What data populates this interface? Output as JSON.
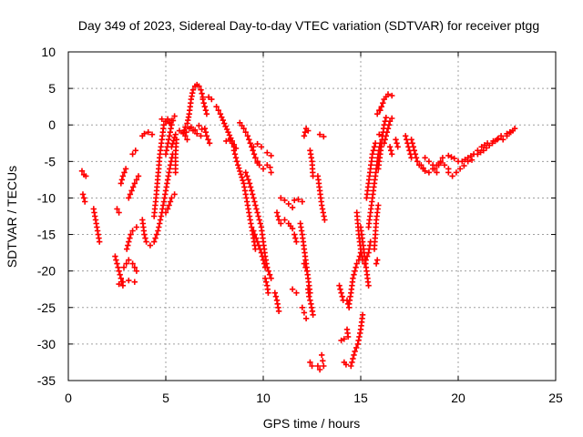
{
  "chart_data": {
    "type": "scatter",
    "title": "Day 349 of 2023, Sidereal Day-to-day VTEC variation (SDTVAR) for receiver ptgg",
    "xlabel": "GPS time / hours",
    "ylabel": "SDTVAR / TECUs",
    "xlim": [
      0,
      25
    ],
    "ylim": [
      -35,
      10
    ],
    "xticks": [
      "0",
      "5",
      "10",
      "15",
      "20",
      "25"
    ],
    "yticks": [
      "-35",
      "-30",
      "-25",
      "-20",
      "-15",
      "-10",
      "-5",
      "0",
      "5",
      "10"
    ],
    "grid": true,
    "marker": "plus",
    "color": "#ff0000",
    "tracks": [
      [
        [
          0.7,
          -6.3
        ],
        [
          0.8,
          -6.8
        ],
        [
          0.9,
          -7.0
        ]
      ],
      [
        [
          0.75,
          -9.5
        ],
        [
          0.85,
          -10.5
        ]
      ],
      [
        [
          1.3,
          -11.5
        ],
        [
          1.4,
          -13
        ],
        [
          1.5,
          -14.5
        ],
        [
          1.6,
          -16
        ]
      ],
      [
        [
          2.5,
          -11.5
        ],
        [
          2.6,
          -12
        ]
      ],
      [
        [
          2.4,
          -18
        ],
        [
          2.5,
          -19
        ],
        [
          2.6,
          -20
        ],
        [
          2.7,
          -21
        ],
        [
          2.8,
          -22
        ]
      ],
      [
        [
          2.6,
          -21.8
        ],
        [
          2.8,
          -21.5
        ],
        [
          3.1,
          -21.3
        ],
        [
          3.4,
          -21.5
        ]
      ],
      [
        [
          2.7,
          -8
        ],
        [
          2.8,
          -7
        ],
        [
          2.95,
          -6
        ]
      ],
      [
        [
          2.85,
          -19.5
        ],
        [
          3.1,
          -18.5
        ],
        [
          3.3,
          -19
        ],
        [
          3.5,
          -20
        ]
      ],
      [
        [
          3.0,
          -17
        ],
        [
          3.1,
          -16
        ],
        [
          3.2,
          -15
        ],
        [
          3.3,
          -14.5
        ],
        [
          3.5,
          -14
        ]
      ],
      [
        [
          3.1,
          -10
        ],
        [
          3.25,
          -9
        ],
        [
          3.4,
          -8
        ],
        [
          3.6,
          -7
        ]
      ],
      [
        [
          3.3,
          -4
        ],
        [
          3.45,
          -3.5
        ]
      ],
      [
        [
          3.8,
          -13
        ],
        [
          3.9,
          -15
        ],
        [
          4.0,
          -16
        ],
        [
          4.2,
          -16.5
        ],
        [
          4.4,
          -16
        ],
        [
          4.6,
          -14.5
        ],
        [
          4.8,
          -12
        ],
        [
          5.0,
          -9
        ],
        [
          5.2,
          -6
        ],
        [
          5.35,
          -4
        ]
      ],
      [
        [
          3.8,
          -1.5
        ],
        [
          3.9,
          -1.2
        ],
        [
          4.1,
          -1.0
        ],
        [
          4.3,
          -1.3
        ]
      ],
      [
        [
          4.4,
          -12.5
        ],
        [
          4.5,
          -10
        ],
        [
          4.6,
          -7
        ],
        [
          4.7,
          -4
        ],
        [
          4.8,
          -2
        ],
        [
          4.9,
          0
        ],
        [
          5.0,
          0.5
        ],
        [
          5.1,
          0.8
        ],
        [
          5.2,
          0.3
        ]
      ],
      [
        [
          4.8,
          0.8
        ],
        [
          5.0,
          0.5
        ],
        [
          5.2,
          0.2
        ],
        [
          5.3,
          0.6
        ]
      ],
      [
        [
          5.0,
          -12
        ],
        [
          5.1,
          -11.5
        ],
        [
          5.3,
          -10
        ],
        [
          5.45,
          -9.5
        ]
      ],
      [
        [
          5.0,
          -4
        ],
        [
          5.15,
          -2
        ],
        [
          5.3,
          0
        ],
        [
          5.45,
          1.2
        ]
      ],
      [
        [
          5.3,
          -3
        ],
        [
          5.5,
          -1.3
        ],
        [
          5.7,
          -0.8
        ],
        [
          5.9,
          -1.0
        ],
        [
          6.1,
          -2.0
        ]
      ],
      [
        [
          5.5,
          -6.5
        ],
        [
          5.5,
          -4
        ],
        [
          5.55,
          -2
        ]
      ],
      [
        [
          5.9,
          -1.2
        ],
        [
          6.0,
          -0.3
        ],
        [
          6.1,
          0.2
        ],
        [
          6.2,
          1.5
        ],
        [
          6.3,
          3.5
        ],
        [
          6.4,
          4.8
        ],
        [
          6.5,
          5.3
        ],
        [
          6.6,
          5.5
        ],
        [
          6.7,
          5.3
        ],
        [
          6.8,
          4.8
        ],
        [
          6.9,
          3.8
        ]
      ],
      [
        [
          6.05,
          -1.0
        ],
        [
          6.2,
          -0.5
        ],
        [
          6.4,
          -0.8
        ],
        [
          6.6,
          -1.2
        ],
        [
          6.8,
          -1.5
        ]
      ],
      [
        [
          6.3,
          -0.3
        ],
        [
          6.5,
          -0.7
        ],
        [
          6.7,
          -0.1
        ],
        [
          6.85,
          -0.6
        ]
      ],
      [
        [
          6.9,
          3.5
        ],
        [
          7.0,
          2.5
        ],
        [
          7.1,
          1.5
        ]
      ],
      [
        [
          7.0,
          -0.5
        ],
        [
          7.1,
          -1.5
        ],
        [
          7.25,
          -2.5
        ]
      ],
      [
        [
          7.2,
          3.8
        ],
        [
          7.35,
          3.5
        ]
      ],
      [
        [
          7.6,
          2.5
        ],
        [
          7.8,
          1.5
        ],
        [
          8.0,
          0.2
        ],
        [
          8.2,
          -1.0
        ],
        [
          8.4,
          -2.2
        ],
        [
          8.6,
          -3.2
        ]
      ],
      [
        [
          8.1,
          -2.2
        ],
        [
          8.3,
          -2.0
        ],
        [
          8.5,
          -3.0
        ]
      ],
      [
        [
          8.5,
          -3.5
        ],
        [
          8.7,
          -5.5
        ],
        [
          9.0,
          -8
        ],
        [
          9.2,
          -11
        ],
        [
          9.4,
          -14
        ],
        [
          9.6,
          -17
        ]
      ],
      [
        [
          8.8,
          0.3
        ],
        [
          9.0,
          -0.5
        ],
        [
          9.2,
          -1.5
        ],
        [
          9.4,
          -3
        ],
        [
          9.6,
          -4.5
        ],
        [
          9.8,
          -5.5
        ],
        [
          10.0,
          -6
        ],
        [
          10.2,
          -5.5
        ]
      ],
      [
        [
          9.1,
          -6.5
        ],
        [
          9.3,
          -8
        ],
        [
          9.5,
          -10
        ],
        [
          9.7,
          -12
        ],
        [
          9.9,
          -14
        ],
        [
          10.0,
          -16
        ],
        [
          10.1,
          -18
        ],
        [
          10.2,
          -19.5
        ],
        [
          10.4,
          -21
        ]
      ],
      [
        [
          9.5,
          -14.5
        ],
        [
          9.7,
          -16
        ],
        [
          9.9,
          -17.5
        ],
        [
          10.1,
          -19.5
        ]
      ],
      [
        [
          9.5,
          -3
        ],
        [
          9.7,
          -2.6
        ],
        [
          9.9,
          -3.0
        ]
      ],
      [
        [
          9.6,
          -4.5
        ],
        [
          9.7,
          -5.2
        ]
      ],
      [
        [
          10.1,
          -21
        ],
        [
          10.2,
          -22
        ],
        [
          10.25,
          -23
        ]
      ],
      [
        [
          10.6,
          -23
        ],
        [
          10.7,
          -24
        ],
        [
          10.8,
          -25.5
        ]
      ],
      [
        [
          10.2,
          -3.8
        ],
        [
          10.4,
          -4.2
        ]
      ],
      [
        [
          10.35,
          -5.8
        ],
        [
          10.4,
          -6.5
        ]
      ],
      [
        [
          10.7,
          -12
        ],
        [
          10.8,
          -13
        ],
        [
          10.9,
          -13.5
        ]
      ],
      [
        [
          10.9,
          -10
        ],
        [
          11.1,
          -10.3
        ],
        [
          11.3,
          -10.8
        ],
        [
          11.5,
          -11.3
        ]
      ],
      [
        [
          11.1,
          -13
        ],
        [
          11.3,
          -13.5
        ],
        [
          11.5,
          -14.2
        ],
        [
          11.6,
          -15
        ],
        [
          11.7,
          -16
        ]
      ],
      [
        [
          11.6,
          -10.3
        ],
        [
          11.8,
          -10.2
        ],
        [
          12.0,
          -10.5
        ]
      ],
      [
        [
          11.5,
          -22.5
        ],
        [
          11.7,
          -23
        ]
      ],
      [
        [
          11.9,
          -13.5
        ],
        [
          12.0,
          -15
        ],
        [
          12.1,
          -17
        ],
        [
          12.2,
          -19
        ],
        [
          12.3,
          -21
        ],
        [
          12.4,
          -23
        ]
      ],
      [
        [
          12.0,
          -25
        ],
        [
          12.1,
          -25.7
        ],
        [
          12.2,
          -26.5
        ]
      ],
      [
        [
          12.1,
          -1.5
        ],
        [
          12.2,
          -0.5
        ],
        [
          12.3,
          -0.8
        ]
      ],
      [
        [
          12.1,
          -19
        ],
        [
          12.25,
          -20
        ]
      ],
      [
        [
          12.3,
          -22.5
        ],
        [
          12.35,
          -23.5
        ],
        [
          12.45,
          -24.5
        ],
        [
          12.55,
          -26
        ]
      ],
      [
        [
          12.4,
          -32.5
        ],
        [
          12.5,
          -33
        ]
      ],
      [
        [
          12.4,
          -3.5
        ],
        [
          12.5,
          -5
        ],
        [
          12.55,
          -7
        ]
      ],
      [
        [
          12.8,
          -7
        ],
        [
          12.9,
          -9
        ],
        [
          13.0,
          -11
        ],
        [
          13.15,
          -13
        ]
      ],
      [
        [
          12.8,
          -33
        ],
        [
          12.9,
          -33.5
        ]
      ],
      [
        [
          12.9,
          -1.3
        ],
        [
          13.1,
          -1.6
        ]
      ],
      [
        [
          13.0,
          -31.5
        ],
        [
          13.05,
          -32.3
        ],
        [
          13.1,
          -33
        ]
      ],
      [
        [
          13.9,
          -22
        ],
        [
          14.0,
          -23
        ],
        [
          14.1,
          -24
        ]
      ],
      [
        [
          14.0,
          -29.5
        ],
        [
          14.15,
          -29.3
        ]
      ],
      [
        [
          14.15,
          -32.5
        ],
        [
          14.25,
          -32.8
        ]
      ],
      [
        [
          14.3,
          -28
        ],
        [
          14.35,
          -29
        ]
      ],
      [
        [
          14.4,
          -24.5
        ],
        [
          14.5,
          -23
        ],
        [
          14.6,
          -21
        ],
        [
          14.7,
          -20
        ],
        [
          14.8,
          -19
        ],
        [
          14.9,
          -18.5
        ],
        [
          15.0,
          -17.5
        ]
      ],
      [
        [
          14.3,
          -24
        ],
        [
          14.4,
          -25
        ]
      ],
      [
        [
          14.5,
          -33
        ],
        [
          14.6,
          -32
        ],
        [
          14.7,
          -31
        ],
        [
          14.85,
          -30
        ],
        [
          15.0,
          -28
        ],
        [
          15.1,
          -26
        ]
      ],
      [
        [
          14.8,
          -12
        ],
        [
          14.9,
          -15
        ],
        [
          15.0,
          -17
        ],
        [
          15.1,
          -18.5
        ]
      ],
      [
        [
          15.0,
          -14
        ],
        [
          15.1,
          -16
        ],
        [
          15.2,
          -18
        ],
        [
          15.3,
          -20
        ],
        [
          15.4,
          -22
        ]
      ],
      [
        [
          15.2,
          -19
        ],
        [
          15.4,
          -17.5
        ],
        [
          15.5,
          -16
        ]
      ],
      [
        [
          15.3,
          -10
        ],
        [
          15.4,
          -8
        ],
        [
          15.5,
          -6
        ],
        [
          15.6,
          -4
        ],
        [
          15.75,
          -2.5
        ]
      ],
      [
        [
          15.4,
          -14
        ],
        [
          15.5,
          -12
        ],
        [
          15.6,
          -10
        ],
        [
          15.7,
          -8
        ],
        [
          15.8,
          -6
        ],
        [
          15.9,
          -4
        ],
        [
          16.0,
          -2.5
        ]
      ],
      [
        [
          15.7,
          -17
        ],
        [
          15.75,
          -15
        ],
        [
          15.8,
          -13
        ],
        [
          15.9,
          -11
        ]
      ],
      [
        [
          15.8,
          -19
        ],
        [
          15.85,
          -18.5
        ]
      ],
      [
        [
          15.9,
          -6
        ],
        [
          16.0,
          -4
        ],
        [
          16.1,
          -2
        ],
        [
          16.2,
          0
        ],
        [
          16.3,
          1
        ]
      ],
      [
        [
          15.95,
          -1.3
        ],
        [
          16.1,
          -1.5
        ]
      ],
      [
        [
          16.2,
          -2.5
        ],
        [
          16.3,
          -1.5
        ],
        [
          16.4,
          -0.5
        ],
        [
          16.5,
          0.5
        ],
        [
          16.6,
          0.9
        ]
      ],
      [
        [
          16.0,
          2
        ],
        [
          16.2,
          3.5
        ],
        [
          16.4,
          4.2
        ],
        [
          16.6,
          4.0
        ]
      ],
      [
        [
          15.85,
          1.5
        ],
        [
          15.95,
          2.0
        ]
      ],
      [
        [
          16.5,
          -3
        ],
        [
          16.6,
          -4
        ]
      ],
      [
        [
          16.8,
          -2
        ],
        [
          16.9,
          -3
        ]
      ],
      [
        [
          17.3,
          -1.5
        ],
        [
          17.4,
          -2.5
        ],
        [
          17.5,
          -3.5
        ],
        [
          17.6,
          -4.5
        ]
      ],
      [
        [
          17.6,
          -2.0
        ],
        [
          17.7,
          -3.0
        ],
        [
          17.8,
          -4.0
        ],
        [
          17.9,
          -5.0
        ],
        [
          18.0,
          -5.5
        ],
        [
          18.2,
          -6.0
        ]
      ],
      [
        [
          18.1,
          -5.5
        ],
        [
          18.3,
          -6.3
        ],
        [
          18.5,
          -6.5
        ],
        [
          18.7,
          -6.0
        ],
        [
          18.9,
          -5.5
        ],
        [
          19.1,
          -5.2
        ],
        [
          19.3,
          -5.5
        ],
        [
          19.5,
          -6.0
        ]
      ],
      [
        [
          18.3,
          -4.5
        ],
        [
          18.5,
          -5.0
        ],
        [
          18.7,
          -5.5
        ],
        [
          18.9,
          -6.5
        ]
      ],
      [
        [
          19.0,
          -5.5
        ],
        [
          19.2,
          -4.5
        ],
        [
          19.5,
          -4.2
        ],
        [
          19.8,
          -4.6
        ],
        [
          20.0,
          -5.0
        ]
      ],
      [
        [
          19.5,
          -6.5
        ],
        [
          19.7,
          -7.0
        ],
        [
          19.9,
          -6.5
        ],
        [
          20.1,
          -6.0
        ],
        [
          20.3,
          -5.6
        ],
        [
          20.5,
          -5.0
        ],
        [
          20.7,
          -4.8
        ]
      ],
      [
        [
          20.2,
          -5.0
        ],
        [
          20.5,
          -4.5
        ],
        [
          20.8,
          -4.0
        ],
        [
          21.0,
          -3.5
        ],
        [
          21.2,
          -3.0
        ],
        [
          21.5,
          -2.5
        ],
        [
          21.8,
          -2.2
        ],
        [
          22.0,
          -2.0
        ]
      ],
      [
        [
          21.0,
          -4.0
        ],
        [
          21.3,
          -3.5
        ],
        [
          21.6,
          -2.8
        ],
        [
          21.9,
          -2.2
        ],
        [
          22.2,
          -1.5
        ],
        [
          22.5,
          -1.2
        ],
        [
          22.8,
          -0.8
        ]
      ],
      [
        [
          22.3,
          -2.0
        ],
        [
          22.5,
          -1.5
        ],
        [
          22.7,
          -1.0
        ],
        [
          22.9,
          -0.5
        ]
      ]
    ]
  }
}
